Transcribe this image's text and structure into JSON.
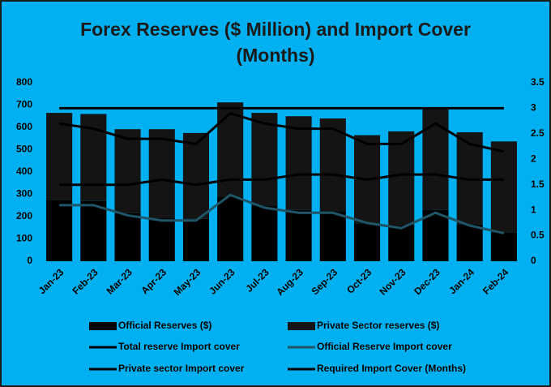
{
  "chart_data": {
    "type": "bar-line",
    "title": "Forex Reserves ($ Million) and Import Cover (Months)",
    "categories": [
      "Jan-23",
      "Feb-23",
      "Mar-23",
      "Apr-23",
      "May-23",
      "Jun-23",
      "Jul-23",
      "Aug-23",
      "Sep-23",
      "Oct-23",
      "Nov-23",
      "Dec-23",
      "Jan-24",
      "Feb-24"
    ],
    "series": [
      {
        "name": "Official Reserves ($)",
        "type": "bar",
        "color": "#000000",
        "values": [
          275,
          270,
          215,
          195,
          190,
          290,
          250,
          230,
          225,
          170,
          160,
          230,
          165,
          130
        ]
      },
      {
        "name": "Private Sector reserves ($)",
        "type": "bar",
        "color": "#141414",
        "values": [
          390,
          390,
          377,
          397,
          385,
          422,
          415,
          420,
          415,
          395,
          422,
          455,
          413,
          407
        ]
      },
      {
        "name": "Total reserve Import cover",
        "type": "line",
        "axis": "y2",
        "color": "#000000",
        "values": [
          2.7,
          2.6,
          2.4,
          2.4,
          2.3,
          2.9,
          2.7,
          2.6,
          2.6,
          2.3,
          2.3,
          2.7,
          2.3,
          2.15
        ]
      },
      {
        "name": "Official Reserve Import cover",
        "type": "line",
        "axis": "y2",
        "color": "#1f5566",
        "values": [
          1.1,
          1.1,
          0.9,
          0.8,
          0.8,
          1.3,
          1.05,
          0.95,
          0.95,
          0.75,
          0.65,
          0.95,
          0.7,
          0.55
        ]
      },
      {
        "name": "Private sector Import cover",
        "type": "line",
        "axis": "y2",
        "color": "#000000",
        "values": [
          1.5,
          1.5,
          1.5,
          1.6,
          1.5,
          1.6,
          1.6,
          1.7,
          1.7,
          1.6,
          1.7,
          1.7,
          1.6,
          1.6
        ]
      },
      {
        "name": "Required Import Cover (Months)",
        "type": "line",
        "axis": "y2",
        "color": "#000000",
        "values": [
          3,
          3,
          3,
          3,
          3,
          3,
          3,
          3,
          3,
          3,
          3,
          3,
          3,
          3
        ]
      }
    ],
    "ylim": [
      0,
      800
    ],
    "yticks": [
      0,
      100,
      200,
      300,
      400,
      500,
      600,
      700,
      800
    ],
    "y2lim": [
      0,
      3.5
    ],
    "y2ticks": [
      0,
      0.5,
      1,
      1.5,
      2,
      2.5,
      3,
      3.5
    ],
    "stacked": true,
    "grid": false,
    "legend": "bottom"
  }
}
